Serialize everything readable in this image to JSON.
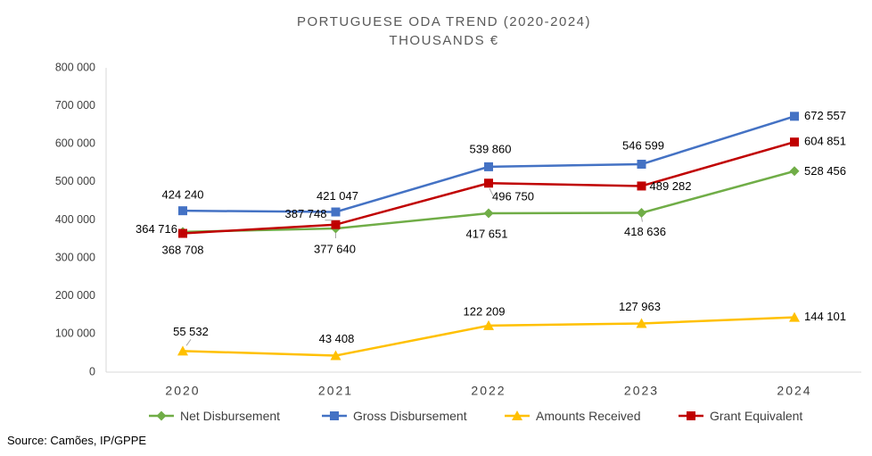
{
  "chart_data": {
    "type": "line",
    "title": "PORTUGUESE ODA TREND (2020-2024)",
    "subtitle": "THOUSANDS €",
    "xlabel": "",
    "ylabel": "",
    "ylim": [
      0,
      800000
    ],
    "yticks": [
      0,
      100000,
      200000,
      300000,
      400000,
      500000,
      600000,
      700000,
      800000
    ],
    "ytick_labels": [
      "0",
      "100 000",
      "200 000",
      "300 000",
      "400 000",
      "500 000",
      "600 000",
      "700 000",
      "800 000"
    ],
    "categories": [
      "2020",
      "2021",
      "2022",
      "2023",
      "2024"
    ],
    "grid": false,
    "legend_position": "bottom",
    "series": [
      {
        "key": "net",
        "name": "Net Disbursement",
        "color": "#70AD47",
        "marker": "diamond",
        "values": [
          368708,
          377640,
          417651,
          418636,
          528456
        ],
        "labels": [
          "368 708",
          "377 640",
          "417 651",
          "418 636",
          "528 456"
        ]
      },
      {
        "key": "gross",
        "name": "Gross Disbursement",
        "color": "#4472C4",
        "marker": "square",
        "values": [
          424240,
          421047,
          539860,
          546599,
          672557
        ],
        "labels": [
          "424 240",
          "421 047",
          "539 860",
          "546 599",
          "672 557"
        ]
      },
      {
        "key": "received",
        "name": "Amounts Received",
        "color": "#FFC000",
        "marker": "triangle",
        "values": [
          55532,
          43408,
          122209,
          127963,
          144101
        ],
        "labels": [
          "55 532",
          "43 408",
          "122 209",
          "127 963",
          "144 101"
        ]
      },
      {
        "key": "grant",
        "name": "Grant Equivalent",
        "color": "#C00000",
        "marker": "square",
        "values": [
          364716,
          387748,
          496750,
          489282,
          604851
        ],
        "labels": [
          "364 716",
          "387 748",
          "496 750",
          "489 282",
          "604 851"
        ]
      }
    ]
  },
  "source": "Source: Camões, IP/GPPE"
}
